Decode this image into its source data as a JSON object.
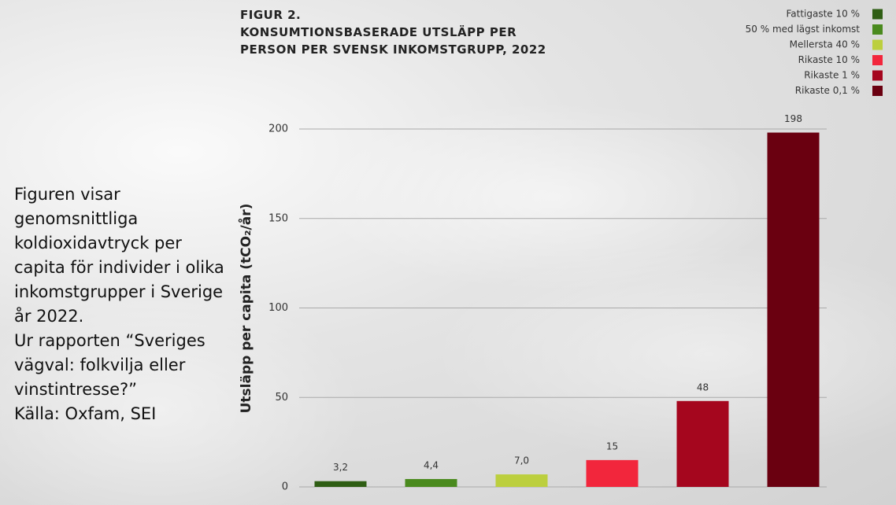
{
  "caption": [
    "Figuren visar genomsnittliga koldioxidavtryck per capita för individer i olika inkomstgrupper i Sverige år 2022.",
    "Ur rapporten “Sveriges vägval: folkvilja eller vinstintresse?”",
    "Källa: Oxfam, SEI"
  ],
  "chart_data": {
    "type": "bar",
    "title": "FIGUR 2.",
    "subtitle": "KONSUMTIONSBASERADE UTSLÄPP PER PERSON PER SVENSK INKOMSTGRUPP, 2022",
    "y_label": "Utsläpp per capita (tCO₂/år)",
    "categories": [
      null
    ],
    "series": [
      {
        "name": "Fattigaste 10 %",
        "color": "#2f5e14",
        "values": [
          3.2
        ],
        "value_labels": [
          "3,2"
        ]
      },
      {
        "name": "50 % med lägst inkomst",
        "color": "#4a8a1e",
        "values": [
          4.4
        ],
        "value_labels": [
          "4,4"
        ]
      },
      {
        "name": "Mellersta 40 %",
        "color": "#bccf3e",
        "values": [
          7.0
        ],
        "value_labels": [
          "7,0"
        ]
      },
      {
        "name": "Rikaste 10 %",
        "color": "#f2263c",
        "values": [
          15
        ]
      },
      {
        "name": "Rikaste 1 %",
        "color": "#a5061e",
        "values": [
          48
        ]
      },
      {
        "name": "Rikaste 0,1 %",
        "color": "#6a0010",
        "values": [
          198
        ]
      }
    ],
    "ylim": [
      0,
      200
    ],
    "yticks": [
      0,
      50,
      100,
      150,
      200
    ],
    "grid": true,
    "legend": "top-right"
  }
}
